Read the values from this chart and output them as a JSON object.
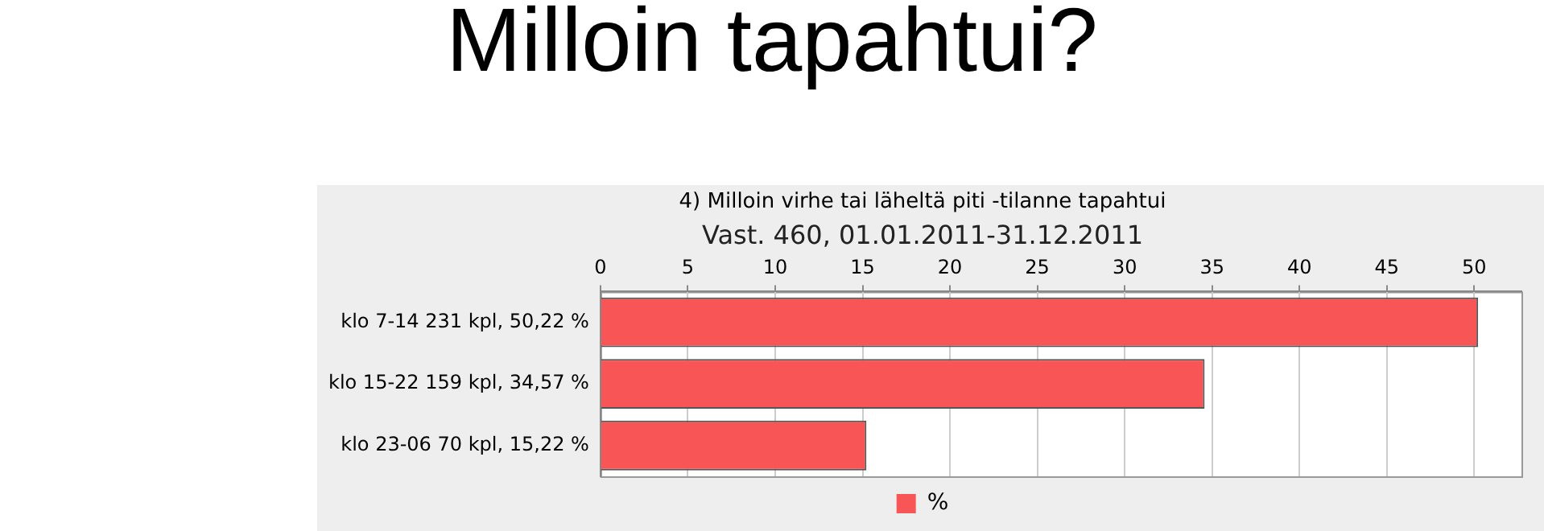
{
  "chart_data": {
    "type": "bar",
    "orientation": "horizontal",
    "title": "Milloin tapahtui?",
    "subtitle": "4) Milloin virhe tai läheltä piti -tilanne tapahtui",
    "annotations": [
      "Vast. 460, 01.01.2011-31.12.2011"
    ],
    "categories": [
      "klo 7-14 231 kpl, 50,22 %",
      "klo 15-22 159 kpl, 34,57 %",
      "klo 23-06 70 kpl, 15,22 %"
    ],
    "series": [
      {
        "name": "%",
        "color": "#f85656",
        "values": [
          50.22,
          34.57,
          15.22
        ]
      }
    ],
    "xlim": [
      0,
      52.7
    ],
    "xticks": [
      0,
      5,
      10,
      15,
      20,
      25,
      30,
      35,
      40,
      45,
      50
    ],
    "grid": "x",
    "legend": "bottom"
  }
}
